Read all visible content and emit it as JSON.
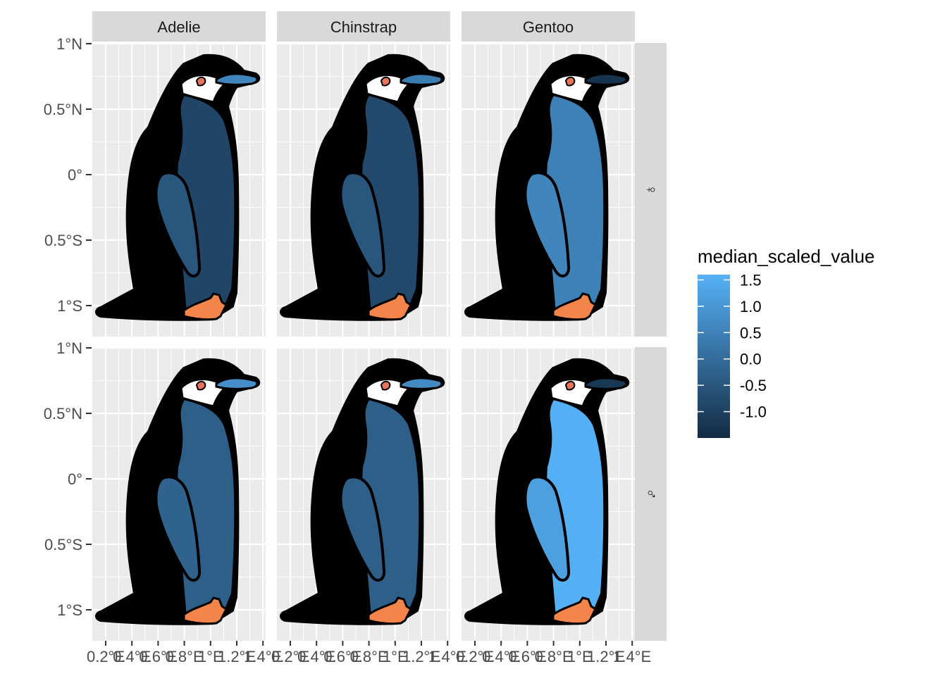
{
  "chart_data": {
    "type": "heatmap",
    "description_kind": "faceted penguin-shaped map, body colored by value",
    "facet_columns": [
      "Adelie",
      "Chinstrap",
      "Gentoo"
    ],
    "facet_rows": [
      "♀",
      "♂"
    ],
    "x_tick_labels": [
      "0.2°E",
      "0.4°E",
      "0.6°E",
      "0.8°E",
      "1°E",
      "1.2°E",
      "1.4°E"
    ],
    "y_tick_labels": [
      "1°S",
      "0.5°S",
      "0°",
      "0.5°N",
      "1°N"
    ],
    "xlim": [
      0.1,
      1.4
    ],
    "ylim": [
      -1.1,
      1.1
    ],
    "grid": true,
    "legend": {
      "title": "median_scaled_value",
      "position": "right",
      "breaks": [
        1.5,
        1.0,
        0.5,
        0.0,
        -0.5,
        -1.0
      ],
      "break_labels": [
        "1.5",
        "1.0",
        "0.5",
        "0.0",
        "-0.5",
        "-1.0"
      ],
      "range": [
        -1.5,
        1.6
      ],
      "low_color": "#132B43",
      "high_color": "#56B1F7"
    },
    "cells": [
      {
        "species": "Adelie",
        "sex": "♀",
        "body": -0.9,
        "flipper": -0.5,
        "beak": 0.6
      },
      {
        "species": "Chinstrap",
        "sex": "♀",
        "body": -0.8,
        "flipper": -0.5,
        "beak": 0.4
      },
      {
        "species": "Gentoo",
        "sex": "♀",
        "body": 0.5,
        "flipper": 0.6,
        "beak": -1.3
      },
      {
        "species": "Adelie",
        "sex": "♂",
        "body": -0.3,
        "flipper": -0.2,
        "beak": 0.8
      },
      {
        "species": "Chinstrap",
        "sex": "♂",
        "body": -0.3,
        "flipper": -0.3,
        "beak": 0.7
      },
      {
        "species": "Gentoo",
        "sex": "♂",
        "body": 1.55,
        "flipper": 1.2,
        "beak": -1.2
      }
    ],
    "colors": {
      "panel_bg": "#EBEBEB",
      "grid": "#FFFFFF",
      "strip_bg": "#D9D9D9",
      "outline": "#000000",
      "eye_patch": "#FFFFFF",
      "eye": "#E8735A",
      "feet": "#F4854A"
    }
  }
}
